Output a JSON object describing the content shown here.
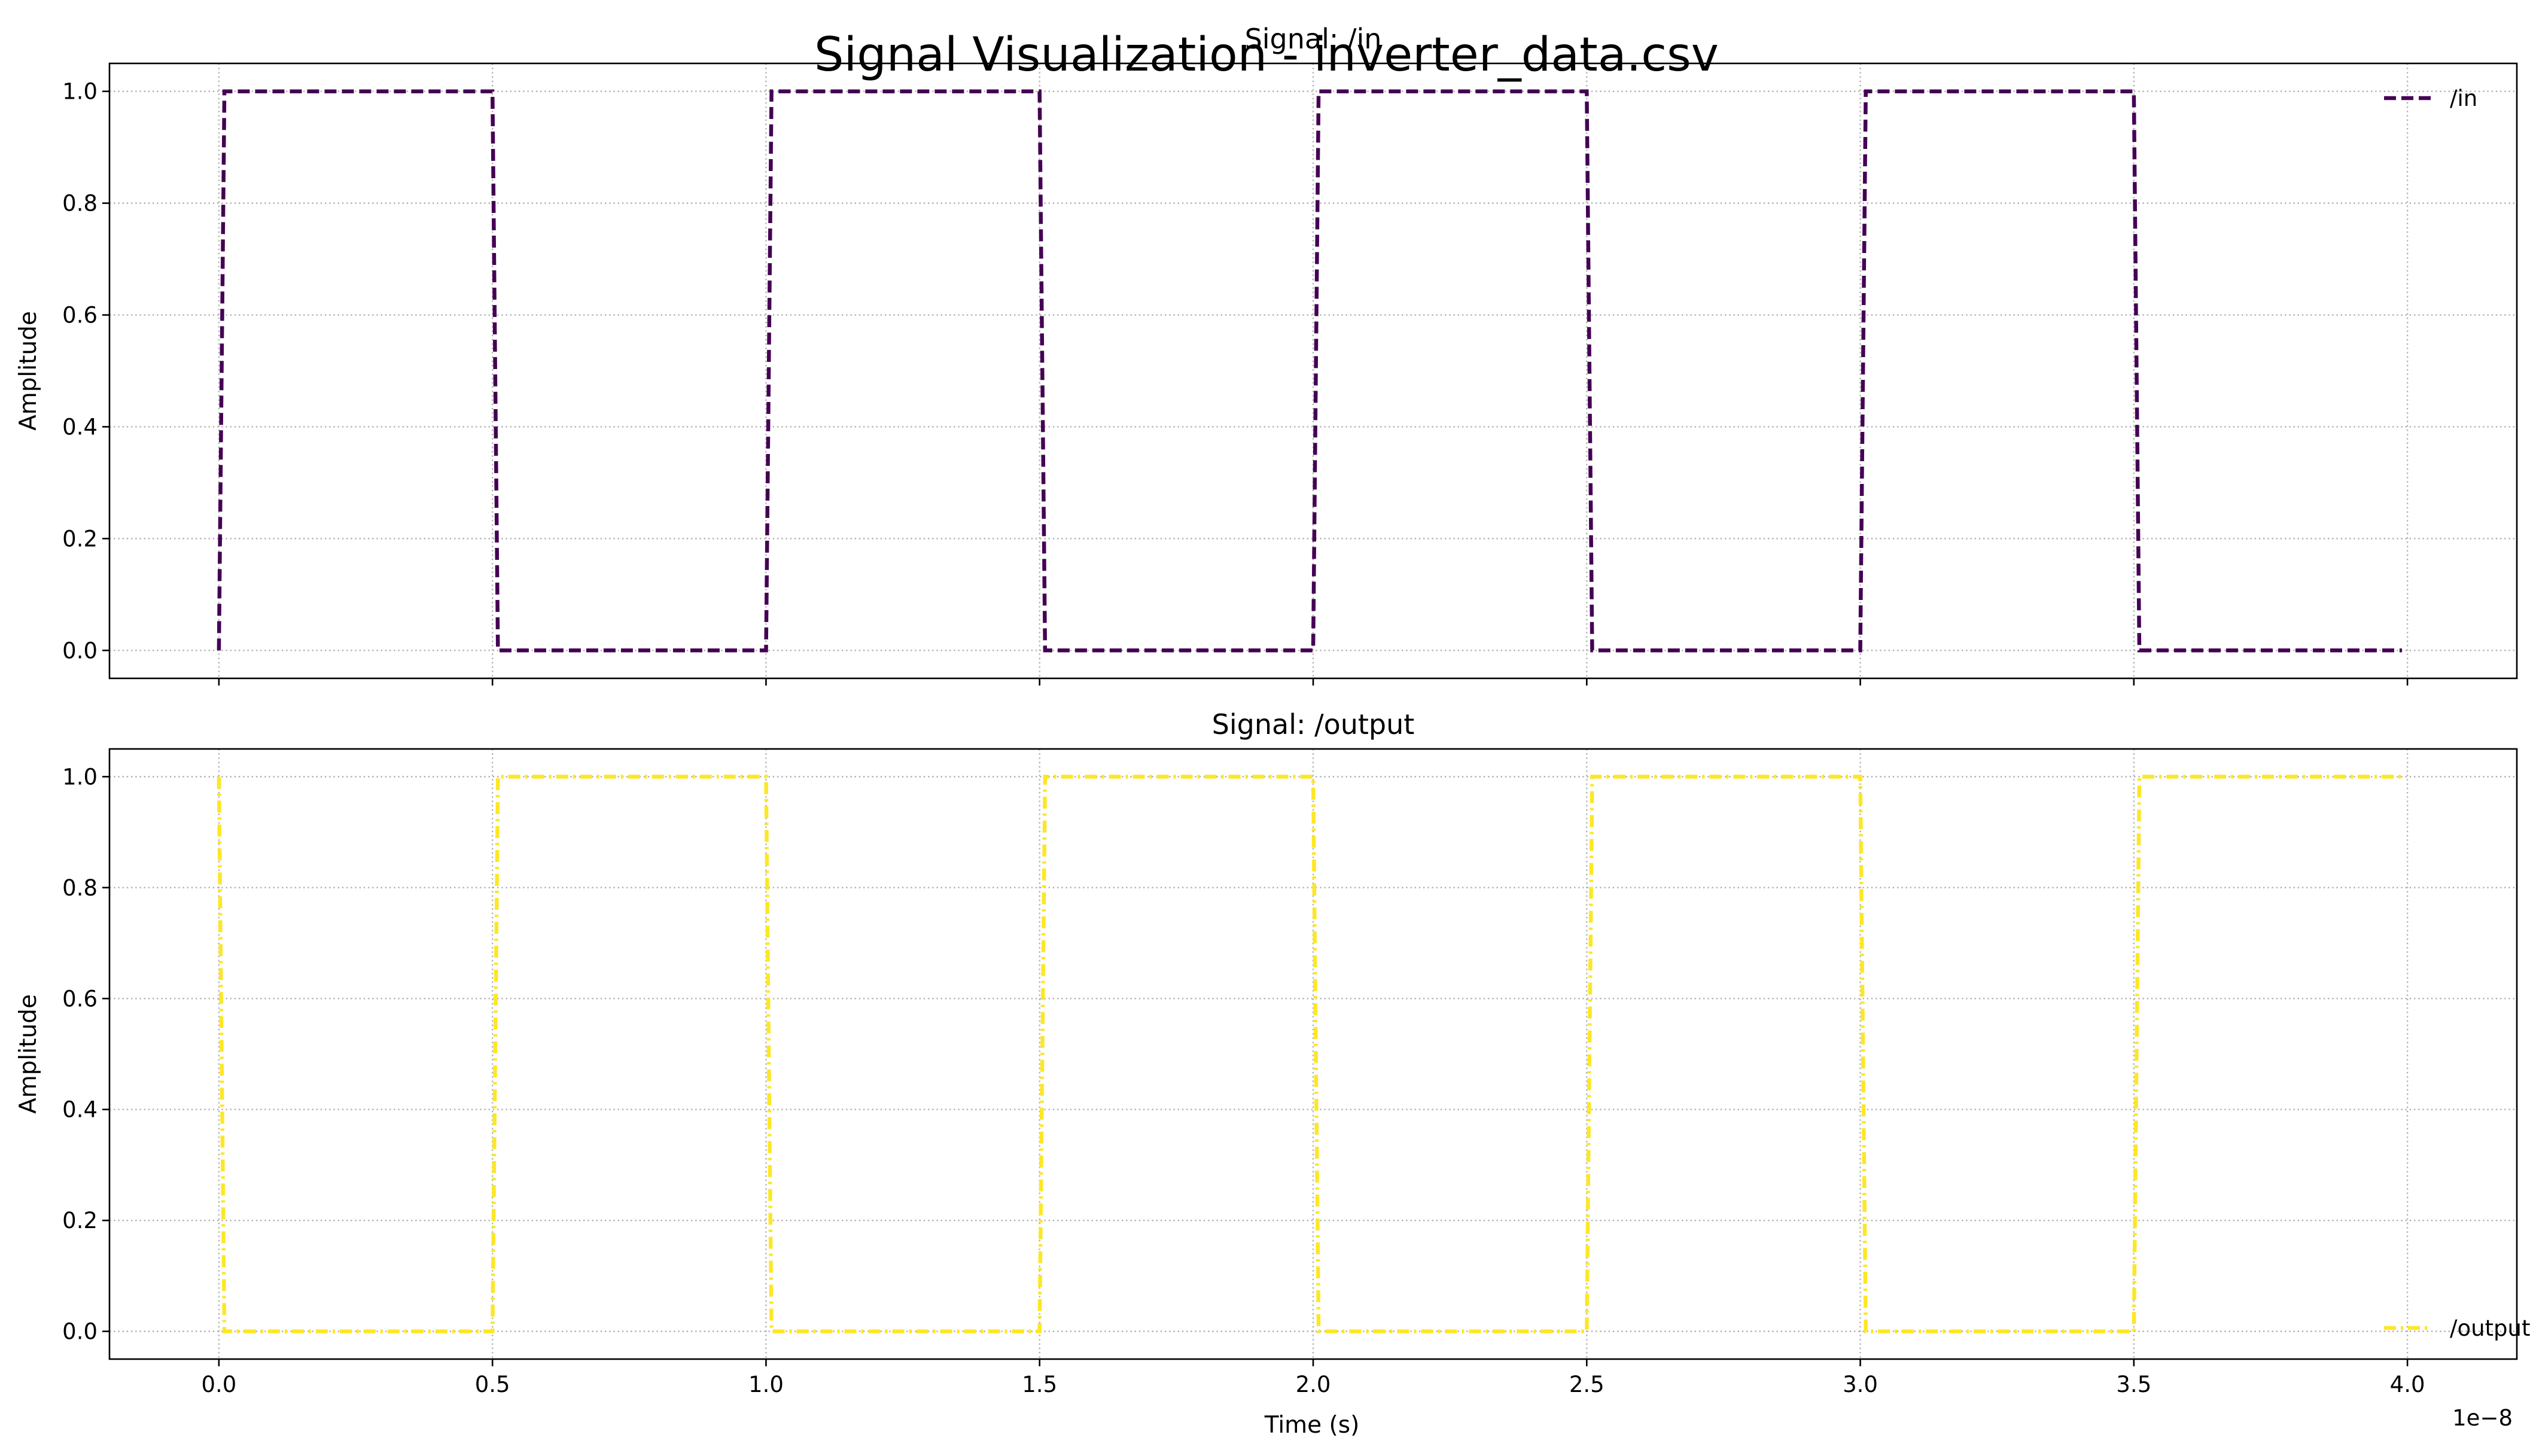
{
  "figure": {
    "suptitle": "Signal Visualization - inverter_data.csv",
    "xlabel": "Time (s)",
    "x_offset_text": "1e−8"
  },
  "chart_data": [
    {
      "type": "line",
      "title": "Signal: /in",
      "xlabel": "",
      "ylabel": "Amplitude",
      "x_scale_factor": "1e-8",
      "xlim": [
        -0.2,
        4.2
      ],
      "ylim": [
        -0.05,
        1.05
      ],
      "x_ticks": [
        "0.0",
        "0.5",
        "1.0",
        "1.5",
        "2.0",
        "2.5",
        "3.0",
        "3.5",
        "4.0"
      ],
      "y_ticks": [
        "0.0",
        "0.2",
        "0.4",
        "0.6",
        "0.8",
        "1.0"
      ],
      "grid": true,
      "legend_position": "top-right",
      "series": [
        {
          "name": "/in",
          "color": "#440154",
          "line_style": "dashed",
          "x": [
            0.0,
            0.01,
            0.5,
            0.51,
            1.0,
            1.01,
            1.5,
            1.51,
            2.0,
            2.01,
            2.5,
            2.51,
            3.0,
            3.01,
            3.5,
            3.51,
            3.99
          ],
          "y": [
            0,
            1,
            1,
            0,
            0,
            1,
            1,
            0,
            0,
            1,
            1,
            0,
            0,
            1,
            1,
            0,
            0
          ]
        }
      ]
    },
    {
      "type": "line",
      "title": "Signal: /output",
      "xlabel": "Time (s)",
      "ylabel": "Amplitude",
      "x_scale_factor": "1e-8",
      "xlim": [
        -0.2,
        4.2
      ],
      "ylim": [
        -0.05,
        1.05
      ],
      "x_ticks": [
        "0.0",
        "0.5",
        "1.0",
        "1.5",
        "2.0",
        "2.5",
        "3.0",
        "3.5",
        "4.0"
      ],
      "y_ticks": [
        "0.0",
        "0.2",
        "0.4",
        "0.6",
        "0.8",
        "1.0"
      ],
      "grid": true,
      "legend_position": "bottom-right",
      "series": [
        {
          "name": "/output",
          "color": "#fde725",
          "line_style": "dash-dot",
          "x": [
            0.0,
            0.01,
            0.5,
            0.51,
            1.0,
            1.01,
            1.5,
            1.51,
            2.0,
            2.01,
            2.5,
            2.51,
            3.0,
            3.01,
            3.5,
            3.51,
            3.99
          ],
          "y": [
            1,
            0,
            0,
            1,
            1,
            0,
            0,
            1,
            1,
            0,
            0,
            1,
            1,
            0,
            0,
            1,
            1
          ]
        }
      ]
    }
  ]
}
